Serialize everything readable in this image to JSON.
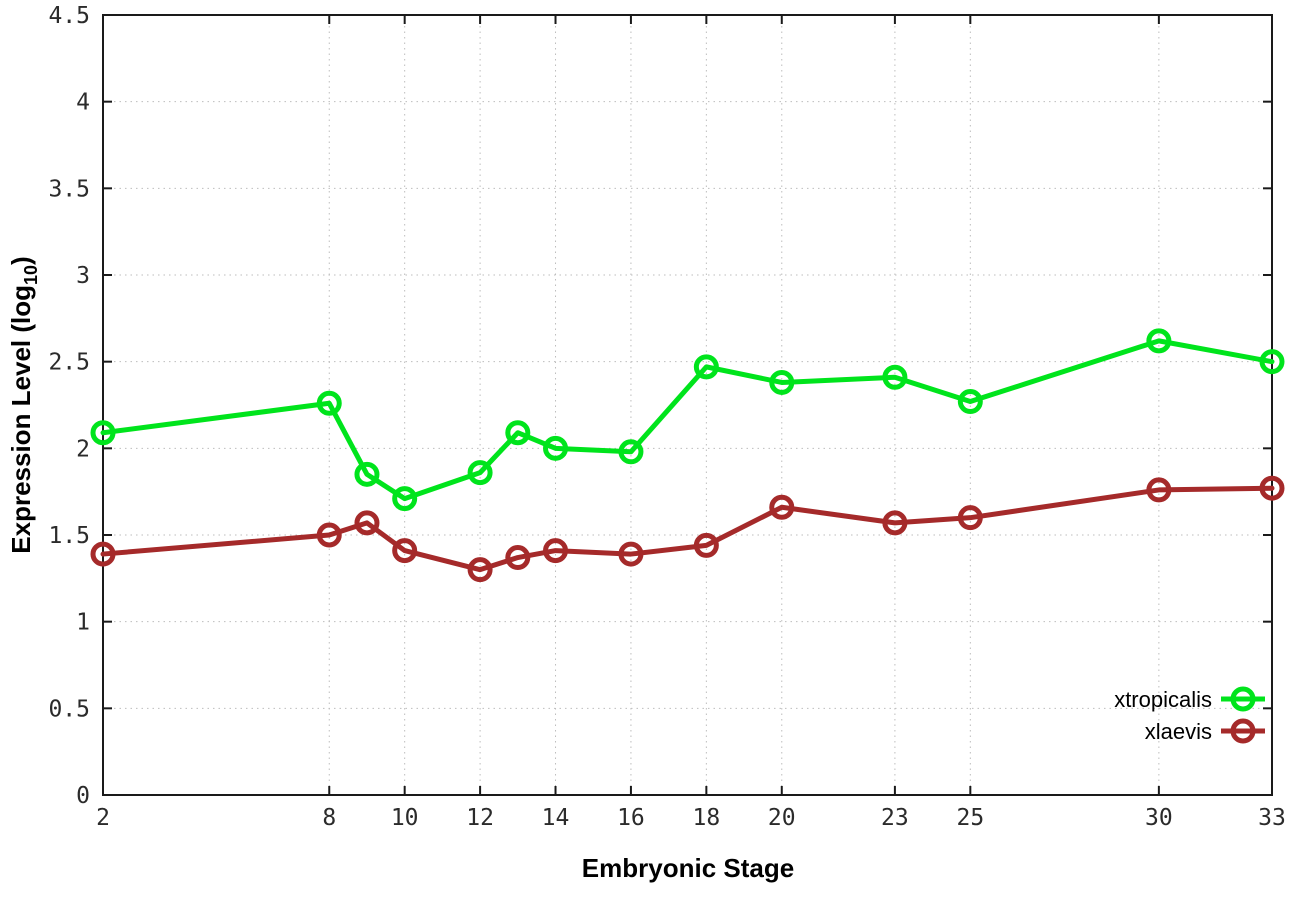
{
  "chart_data": {
    "type": "line",
    "title": "",
    "xlabel": "Embryonic Stage",
    "ylabel": "Expression Level (log10)",
    "ylabel_parts": {
      "prefix": "Expression Level (log",
      "sub": "10",
      "suffix": ")"
    },
    "xlim": [
      2,
      33
    ],
    "ylim": [
      0,
      4.5
    ],
    "grid": true,
    "x_tick_labels": [
      "2",
      "8",
      "10",
      "12",
      "14",
      "16",
      "18",
      "20",
      "23",
      "25",
      "30",
      "33"
    ],
    "y_tick_labels": [
      "0",
      "0.5",
      "1",
      "1.5",
      "2",
      "2.5",
      "3",
      "3.5",
      "4",
      "4.5"
    ],
    "x": [
      2,
      8,
      9,
      10,
      12,
      13,
      14,
      16,
      18,
      20,
      23,
      25,
      30,
      33
    ],
    "series": [
      {
        "name": "xtropicalis",
        "color": "#00e41c",
        "marker": "open-circle",
        "values": [
          2.09,
          2.26,
          1.85,
          1.71,
          1.86,
          2.09,
          2.0,
          1.98,
          2.47,
          2.38,
          2.41,
          2.27,
          2.62,
          2.5
        ]
      },
      {
        "name": "xlaevis",
        "color": "#a52a2a",
        "marker": "open-circle",
        "values": [
          1.39,
          1.5,
          1.57,
          1.41,
          1.3,
          1.37,
          1.41,
          1.39,
          1.44,
          1.66,
          1.57,
          1.6,
          1.76,
          1.77
        ]
      }
    ],
    "legend": {
      "position": "inside-bottom-right",
      "entries": [
        "xtropicalis",
        "xlaevis"
      ]
    },
    "styles": {
      "background": "#ffffff",
      "axis_color": "#1a1a1a",
      "grid_color": "#bdbdbd",
      "tick_label_color": "#2b2b2b",
      "line_width": 5,
      "marker_radius": 10,
      "marker_stroke_width": 5
    }
  }
}
